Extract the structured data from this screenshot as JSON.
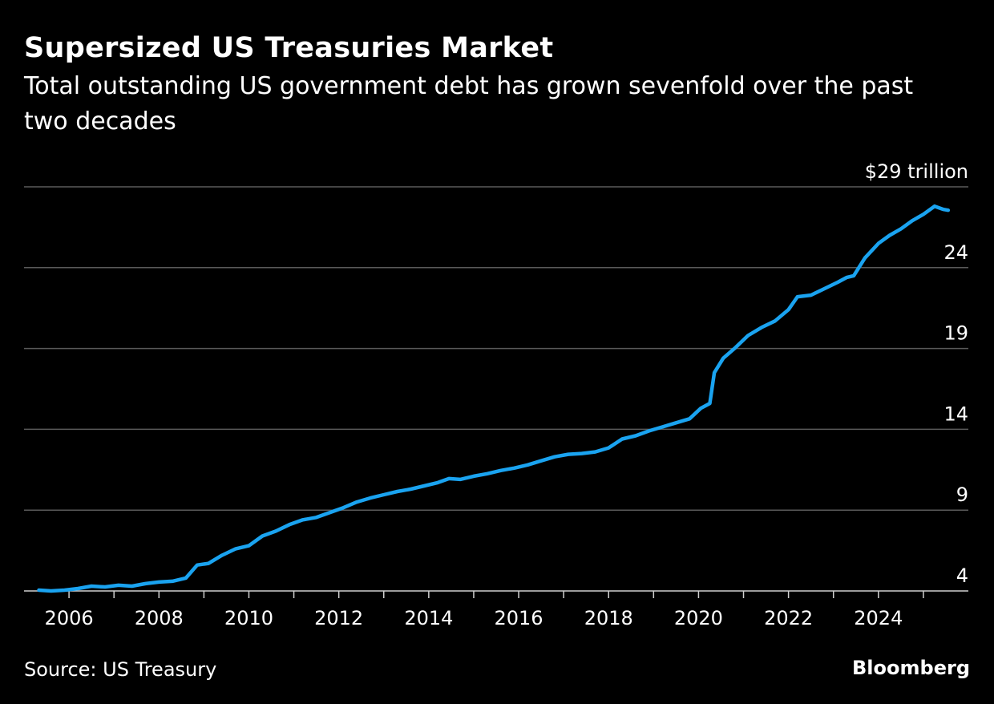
{
  "header": {
    "title": "Supersized US Treasuries Market",
    "subtitle": "Total outstanding US government debt has grown sevenfold over the past two decades"
  },
  "footer": {
    "source": "Source: US Treasury",
    "brand": "Bloomberg"
  },
  "colors": {
    "background": "#000000",
    "line": "#1aa3f0",
    "grid": "#5a5a5a",
    "text": "#ffffff"
  },
  "chart_data": {
    "type": "line",
    "title": "Supersized US Treasuries Market",
    "subtitle": "Total outstanding US government debt has grown sevenfold over the past two decades",
    "xlabel": "",
    "ylabel": "",
    "y_unit_label": "$29 trillion",
    "yticks": [
      4,
      9,
      14,
      19,
      24,
      29
    ],
    "ytick_labels": [
      "4",
      "9",
      "14",
      "19",
      "24",
      "$29 trillion"
    ],
    "ylim": [
      4,
      29
    ],
    "xlim": [
      2005.0,
      2026.0
    ],
    "xticks_labeled": [
      2006,
      2008,
      2010,
      2012,
      2014,
      2016,
      2018,
      2020,
      2022,
      2024
    ],
    "xticks_minor": [
      2007,
      2009,
      2011,
      2013,
      2015,
      2017,
      2019,
      2021,
      2023,
      2025
    ],
    "grid": "horizontal",
    "series": [
      {
        "points": [
          [
            2005.33,
            4.05
          ],
          [
            2005.6,
            4.0
          ],
          [
            2005.9,
            4.05
          ],
          [
            2006.2,
            4.15
          ],
          [
            2006.5,
            4.3
          ],
          [
            2006.8,
            4.25
          ],
          [
            2007.1,
            4.35
          ],
          [
            2007.4,
            4.3
          ],
          [
            2007.7,
            4.45
          ],
          [
            2008.0,
            4.55
          ],
          [
            2008.3,
            4.6
          ],
          [
            2008.6,
            4.8
          ],
          [
            2008.85,
            5.6
          ],
          [
            2009.1,
            5.7
          ],
          [
            2009.4,
            6.2
          ],
          [
            2009.7,
            6.6
          ],
          [
            2010.0,
            6.8
          ],
          [
            2010.3,
            7.4
          ],
          [
            2010.6,
            7.7
          ],
          [
            2010.9,
            8.1
          ],
          [
            2011.2,
            8.4
          ],
          [
            2011.5,
            8.55
          ],
          [
            2011.8,
            8.85
          ],
          [
            2012.1,
            9.15
          ],
          [
            2012.4,
            9.5
          ],
          [
            2012.7,
            9.75
          ],
          [
            2013.0,
            9.95
          ],
          [
            2013.3,
            10.15
          ],
          [
            2013.6,
            10.3
          ],
          [
            2013.9,
            10.5
          ],
          [
            2014.2,
            10.7
          ],
          [
            2014.45,
            10.95
          ],
          [
            2014.7,
            10.9
          ],
          [
            2015.0,
            11.1
          ],
          [
            2015.3,
            11.25
          ],
          [
            2015.6,
            11.45
          ],
          [
            2015.9,
            11.6
          ],
          [
            2016.2,
            11.8
          ],
          [
            2016.5,
            12.05
          ],
          [
            2016.8,
            12.3
          ],
          [
            2017.1,
            12.45
          ],
          [
            2017.4,
            12.5
          ],
          [
            2017.7,
            12.6
          ],
          [
            2018.0,
            12.85
          ],
          [
            2018.3,
            13.4
          ],
          [
            2018.6,
            13.6
          ],
          [
            2018.9,
            13.9
          ],
          [
            2019.2,
            14.15
          ],
          [
            2019.5,
            14.4
          ],
          [
            2019.8,
            14.65
          ],
          [
            2020.05,
            15.3
          ],
          [
            2020.25,
            15.6
          ],
          [
            2020.35,
            17.5
          ],
          [
            2020.55,
            18.4
          ],
          [
            2020.8,
            19.0
          ],
          [
            2021.1,
            19.8
          ],
          [
            2021.4,
            20.3
          ],
          [
            2021.7,
            20.7
          ],
          [
            2022.0,
            21.4
          ],
          [
            2022.2,
            22.2
          ],
          [
            2022.5,
            22.3
          ],
          [
            2022.8,
            22.7
          ],
          [
            2023.1,
            23.1
          ],
          [
            2023.3,
            23.4
          ],
          [
            2023.45,
            23.5
          ],
          [
            2023.7,
            24.6
          ],
          [
            2024.0,
            25.5
          ],
          [
            2024.25,
            26.0
          ],
          [
            2024.5,
            26.4
          ],
          [
            2024.75,
            26.9
          ],
          [
            2025.0,
            27.3
          ],
          [
            2025.25,
            27.8
          ],
          [
            2025.45,
            27.6
          ],
          [
            2025.55,
            27.55
          ]
        ]
      }
    ]
  }
}
